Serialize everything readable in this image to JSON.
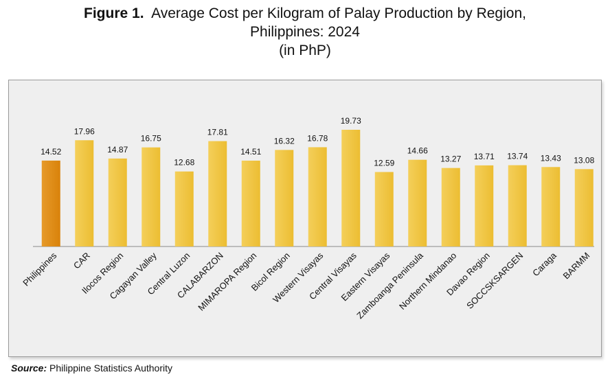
{
  "title": {
    "figure_label": "Figure 1.",
    "line1": "Average Cost per Kilogram of Palay Production by Region,",
    "line2": "Philippines: 2024",
    "line3": "(in PhP)"
  },
  "source": {
    "label": "Source:",
    "text": "Philippine Statistics Authority"
  },
  "colors": {
    "highlight": "#d9820a",
    "bar": "#ecbd32",
    "axis": "#8a8a8a",
    "background": "#efefef"
  },
  "chart_data": {
    "type": "bar",
    "categories": [
      "Philippines",
      "CAR",
      "Ilocos Region",
      "Cagayan Valley",
      "Central Luzon",
      "CALABARZON",
      "MIMAROPA Region",
      "Bicol Region",
      "Western Visayas",
      "Central Visayas",
      "Eastern Visayas",
      "Zamboanga Peninsula",
      "Northern Mindanao",
      "Davao Region",
      "SOCCSKSARGEN",
      "Caraga",
      "BARMM"
    ],
    "values": [
      14.52,
      17.96,
      14.87,
      16.75,
      12.68,
      17.81,
      14.51,
      16.32,
      16.78,
      19.73,
      12.59,
      14.66,
      13.27,
      13.71,
      13.74,
      13.43,
      13.08
    ],
    "data_labels": [
      "14.52",
      "17.96",
      "14.87",
      "16.75",
      "12.68",
      "17.81",
      "14.51",
      "16.32",
      "16.78",
      "19.73",
      "12.59",
      "14.66",
      "13.27",
      "13.71",
      "13.74",
      "13.43",
      "13.08"
    ],
    "ylim": [
      0,
      19.73
    ],
    "grid": false,
    "legend": "none",
    "xlabel": "",
    "ylabel": ""
  }
}
